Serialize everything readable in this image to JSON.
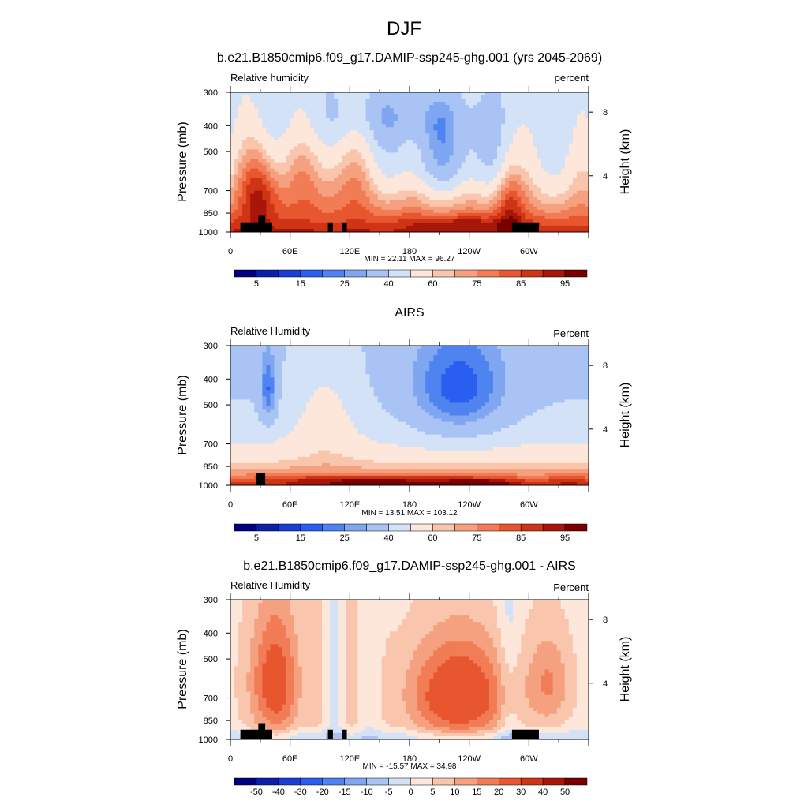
{
  "title": "DJF",
  "colors": {
    "rh_levels": [
      "#00007f",
      "#0b1fa8",
      "#1b3ed6",
      "#2a5ef0",
      "#4f83f0",
      "#7fa6f0",
      "#a8c3f4",
      "#d3e2f7",
      "#fde6da",
      "#f9c6ad",
      "#f5a180",
      "#f17c55",
      "#e85630",
      "#cf3416",
      "#a8160a",
      "#7a0000"
    ],
    "diff_levels": [
      "#00007f",
      "#0b1fa8",
      "#1b3ed6",
      "#2a5ef0",
      "#4f83f0",
      "#7fa6f0",
      "#a8c3f4",
      "#d3e2f7",
      "#fde6da",
      "#f9c6ad",
      "#f5a180",
      "#f17c55",
      "#e85630",
      "#cf3416",
      "#a8160a",
      "#7a0000"
    ],
    "terrain": "#000000"
  },
  "chart_data": [
    {
      "type": "heatmap",
      "title": "b.e21.B1850cmip6.f09_g17.DAMIP-ssp245-ghg.001 (yrs 2045-2069)",
      "left_label": "Relative humidity",
      "right_label": "percent",
      "ylabel": "Pressure (mb)",
      "ylabel_right": "Height (km)",
      "y_ticks": [
        "300",
        "400",
        "500",
        "700",
        "850",
        "1000"
      ],
      "y_right_ticks": [
        "8",
        "4"
      ],
      "x_ticks": [
        "0",
        "60E",
        "120E",
        "180",
        "120W",
        "60W"
      ],
      "stats": "MIN =  22.11  MAX =  96.27",
      "colorbar_labels": [
        "5",
        "15",
        "25",
        "40",
        "60",
        "75",
        "85",
        "95"
      ],
      "x_range_deg": [
        0,
        360
      ],
      "p_range_mb": [
        300,
        1000
      ],
      "pattern": "model"
    },
    {
      "type": "heatmap",
      "title": "AIRS",
      "left_label": "Relative Humidity",
      "right_label": "Percent",
      "ylabel": "Pressure (mb)",
      "ylabel_right": "Height (km)",
      "y_ticks": [
        "300",
        "400",
        "500",
        "700",
        "850",
        "1000"
      ],
      "y_right_ticks": [
        "8",
        "4"
      ],
      "x_ticks": [
        "0",
        "60E",
        "120E",
        "180",
        "120W",
        "60W"
      ],
      "stats": "MIN =  13.51  MAX = 103.12",
      "colorbar_labels": [
        "5",
        "15",
        "25",
        "40",
        "60",
        "75",
        "85",
        "95"
      ],
      "x_range_deg": [
        0,
        360
      ],
      "p_range_mb": [
        300,
        1000
      ],
      "pattern": "obs"
    },
    {
      "type": "heatmap",
      "title": "b.e21.B1850cmip6.f09_g17.DAMIP-ssp245-ghg.001 - AIRS",
      "left_label": "Relative Humidity",
      "right_label": "Percent",
      "ylabel": "Pressure (mb)",
      "ylabel_right": "Height (km)",
      "y_ticks": [
        "300",
        "400",
        "500",
        "700",
        "850",
        "1000"
      ],
      "y_right_ticks": [
        "8",
        "4"
      ],
      "x_ticks": [
        "0",
        "60E",
        "120E",
        "180",
        "120W",
        "60W"
      ],
      "stats": "MIN = -15.57  MAX =  34.98",
      "colorbar_labels": [
        "-50",
        "-40",
        "-30",
        "-20",
        "-15",
        "-10",
        "-5",
        "0",
        "5",
        "10",
        "15",
        "20",
        "30",
        "40",
        "50"
      ],
      "x_range_deg": [
        0,
        360
      ],
      "p_range_mb": [
        300,
        1000
      ],
      "pattern": "diff"
    }
  ]
}
